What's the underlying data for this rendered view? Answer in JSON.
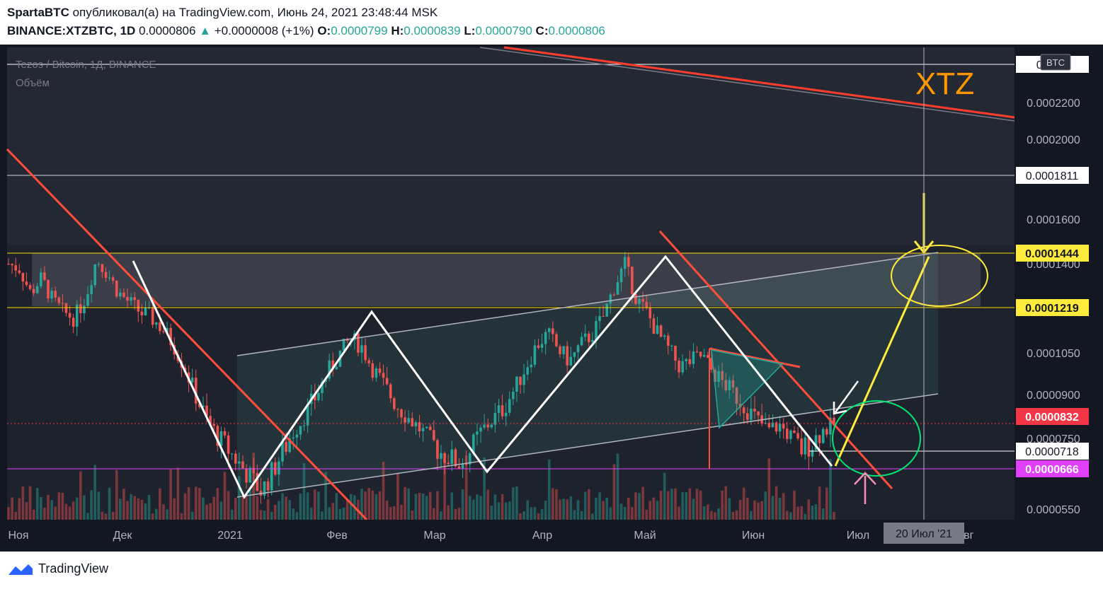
{
  "header": {
    "author": "SpartaBTC",
    "published_text": "опубликовал(а) на TradingView.com, Июнь 24, 2021 23:48:44 MSK",
    "symbol": "BINANCE:XTZBTC, 1D",
    "last": "0.0000806",
    "change": "+0.0000008 (+1%)",
    "o_label": "O:",
    "o_value": "0.0000799",
    "h_label": "H:",
    "h_value": "0.0000839",
    "l_label": "L:",
    "l_value": "0.0000790",
    "c_label": "C:",
    "c_value": "0.0000806"
  },
  "legend": {
    "title": "Tezos / Bitcoin, 1Д, BINANCE",
    "volume": "Объём"
  },
  "annotation": "XTZ",
  "currency_badge": "BTC",
  "footer": {
    "logo_text": "TradingView"
  },
  "colors": {
    "up": "#26a69a",
    "down": "#ef5350",
    "background": "#131722",
    "level_yellow": "#ffd600",
    "level_red": "#f23645",
    "level_magenta": "#e040fb",
    "trend_red": "#ff3d2e",
    "pattern_white": "#ffffff",
    "annotation_orange": "#ff9800"
  },
  "chart_data": {
    "type": "candlestick",
    "title": "Tezos / Bitcoin, 1Д, BINANCE",
    "x_ticks": [
      "Ноя",
      "Дек",
      "2021",
      "Фев",
      "Мар",
      "Апр",
      "Май",
      "Июн",
      "Июл",
      "Авг"
    ],
    "crosshair_x_label": "20 Июл '21",
    "y_ticks": [
      "0.0002200",
      "0.0002000",
      "0.0001600",
      "0.0001400",
      "0.0001050",
      "0.0000900",
      "0.0000750",
      "0.0000550"
    ],
    "price_labels": [
      {
        "value": "0.0002224",
        "shown": "0.0",
        "shown_tail": "24",
        "kind": "white"
      },
      {
        "value": "0.0001811",
        "kind": "white"
      },
      {
        "value": "0.0001444",
        "kind": "yellow"
      },
      {
        "value": "0.0001219",
        "kind": "yellow"
      },
      {
        "value": "0.0000832",
        "kind": "red"
      },
      {
        "value": "0.0000718",
        "kind": "white"
      },
      {
        "value": "0.0000666",
        "kind": "magenta"
      }
    ],
    "candles_approx": {
      "open_close_path": [
        0.00014,
        0.000138,
        0.000128,
        0.000134,
        0.000125,
        0.00012,
        0.000118,
        0.000126,
        0.000142,
        0.000136,
        0.000128,
        0.000124,
        0.00012,
        0.000118,
        0.000114,
        0.000108,
        0.0001,
        9e-05,
        8.2e-05,
        7.6e-05,
        7.2e-05,
        6.8e-05,
        6.4e-05,
        6e-05,
        6.6e-05,
        7.2e-05,
        7.8e-05,
        8.4e-05,
        9e-05,
        9.8e-05,
        0.000104,
        0.00011,
        0.000108,
        0.0001,
        9.4e-05,
        8.8e-05,
        8.4e-05,
        8e-05,
        7.6e-05,
        7.2e-05,
        7e-05,
        6.8e-05,
        7.2e-05,
        7.8e-05,
        8.2e-05,
        8.6e-05,
        9.2e-05,
        0.0001,
        0.000108,
        0.000112,
        0.000106,
        0.000102,
        0.000108,
        0.000112,
        0.000118,
        0.00013,
        0.00014,
        0.000126,
        0.00012,
        0.000112,
        0.000106,
        0.0001,
        0.000102,
        0.000104,
        9.8e-05,
        9.4e-05,
        9e-05,
        8.6e-05,
        8.2e-05,
        7.8e-05,
        8e-05,
        7.6e-05,
        7.2e-05,
        7.4e-05,
        7.8e-05,
        8e-05
      ]
    }
  }
}
